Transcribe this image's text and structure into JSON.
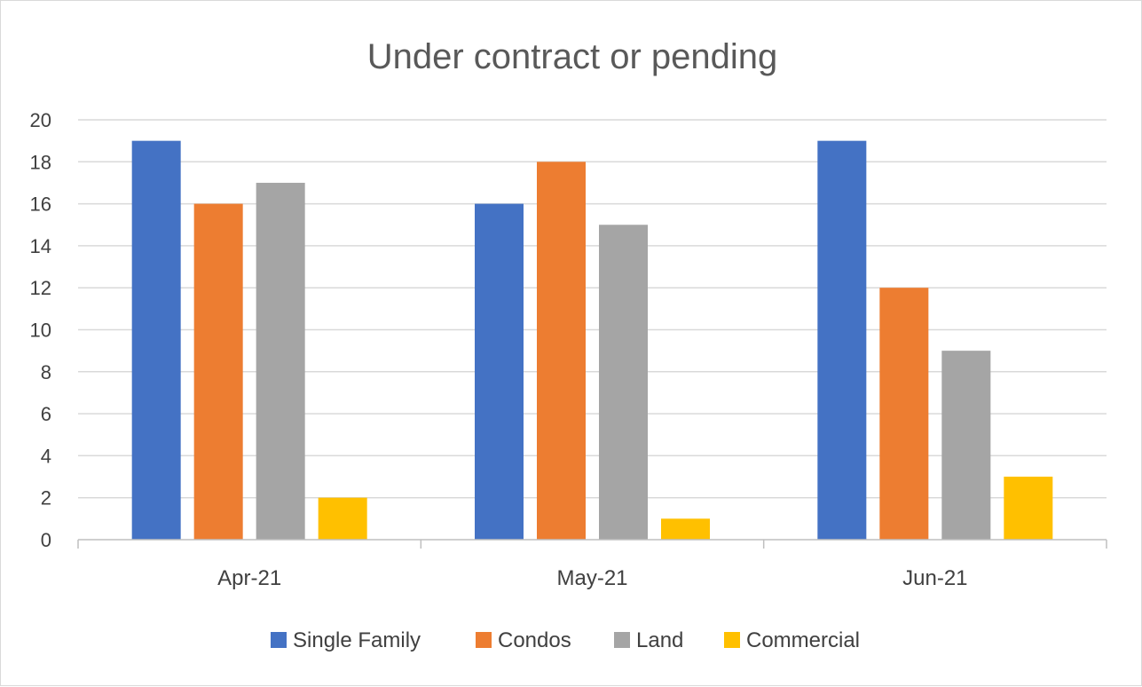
{
  "chart_data": {
    "type": "bar",
    "title": "Under contract or pending",
    "categories": [
      "Apr-21",
      "May-21",
      "Jun-21"
    ],
    "series": [
      {
        "name": "Single Family",
        "color": "#4472C4",
        "values": [
          19,
          16,
          19
        ]
      },
      {
        "name": "Condos",
        "color": "#ED7D31",
        "values": [
          16,
          18,
          12
        ]
      },
      {
        "name": "Land",
        "color": "#A5A5A5",
        "values": [
          17,
          15,
          9
        ]
      },
      {
        "name": "Commercial",
        "color": "#FFC000",
        "values": [
          2,
          1,
          3
        ]
      }
    ],
    "ylim": [
      0,
      20
    ],
    "yticks": [
      0,
      2,
      4,
      6,
      8,
      10,
      12,
      14,
      16,
      18,
      20
    ],
    "grid": true,
    "legend": "bottom"
  }
}
